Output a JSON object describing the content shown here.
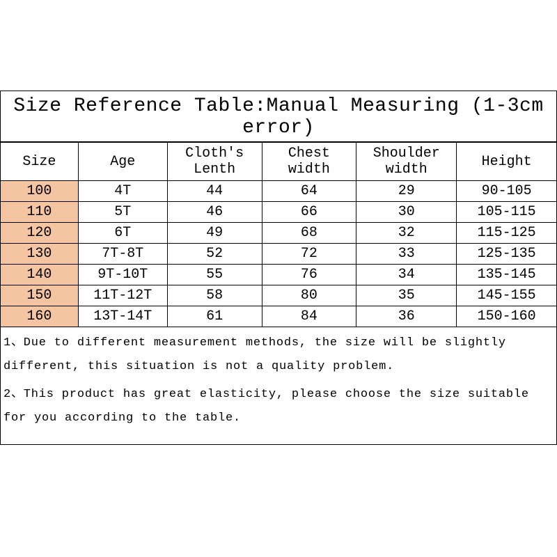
{
  "chart": {
    "title": "Size Reference Table:Manual Measuring (1-3cm error)",
    "columns": [
      "Size",
      "Age",
      "Cloth's Lenth",
      "Chest width",
      "Shoulder width",
      "Height"
    ],
    "column_widths": [
      "14%",
      "16%",
      "17%",
      "17%",
      "18%",
      "18%"
    ],
    "highlight_column_index": 0,
    "highlight_color": "#f5c4a0",
    "rows": [
      [
        "100",
        "4T",
        "44",
        "64",
        "29",
        "90-105"
      ],
      [
        "110",
        "5T",
        "46",
        "66",
        "30",
        "105-115"
      ],
      [
        "120",
        "6T",
        "49",
        "68",
        "32",
        "115-125"
      ],
      [
        "130",
        "7T-8T",
        "52",
        "72",
        "33",
        "125-135"
      ],
      [
        "140",
        "9T-10T",
        "55",
        "76",
        "34",
        "135-145"
      ],
      [
        "150",
        "11T-12T",
        "58",
        "80",
        "35",
        "145-155"
      ],
      [
        "160",
        "13T-14T",
        "61",
        "84",
        "36",
        "150-160"
      ]
    ],
    "notes": [
      "1、Due to different measurement methods, the size will be slightly different, this situation is not a quality problem.",
      "2、This product has great elasticity, please choose the size suitable for you according to the table."
    ],
    "styling": {
      "border_color": "#000000",
      "border_width": 1.5,
      "background_color": "#ffffff",
      "font_family": "Courier New, monospace",
      "title_fontsize": 28,
      "header_fontsize": 20,
      "cell_fontsize": 20,
      "notes_fontsize": 17
    }
  }
}
